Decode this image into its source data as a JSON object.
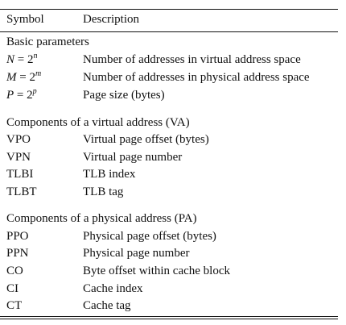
{
  "header": {
    "symbol": "Symbol",
    "description": "Description"
  },
  "sections": [
    {
      "title": "Basic parameters",
      "rows": [
        {
          "symbol_var": "N",
          "symbol_eq": " = 2",
          "symbol_exp": "n",
          "description": "Number of addresses in virtual address space"
        },
        {
          "symbol_var": "M",
          "symbol_eq": " = 2",
          "symbol_exp": "m",
          "description": "Number of addresses in physical address space"
        },
        {
          "symbol_var": "P",
          "symbol_eq": " = 2",
          "symbol_exp": "p",
          "description": "Page size (bytes)"
        }
      ]
    },
    {
      "title": "Components of a virtual address (VA)",
      "rows": [
        {
          "symbol": "VPO",
          "description": "Virtual page offset (bytes)"
        },
        {
          "symbol": "VPN",
          "description": "Virtual page number"
        },
        {
          "symbol": "TLBI",
          "description": "TLB index"
        },
        {
          "symbol": "TLBT",
          "description": "TLB tag"
        }
      ]
    },
    {
      "title": "Components of a physical address (PA)",
      "rows": [
        {
          "symbol": "PPO",
          "description": "Physical page offset (bytes)"
        },
        {
          "symbol": "PPN",
          "description": "Physical page number"
        },
        {
          "symbol": "CO",
          "description": "Byte offset within cache block"
        },
        {
          "symbol": "CI",
          "description": "Cache index"
        },
        {
          "symbol": "CT",
          "description": "Cache tag"
        }
      ]
    }
  ]
}
